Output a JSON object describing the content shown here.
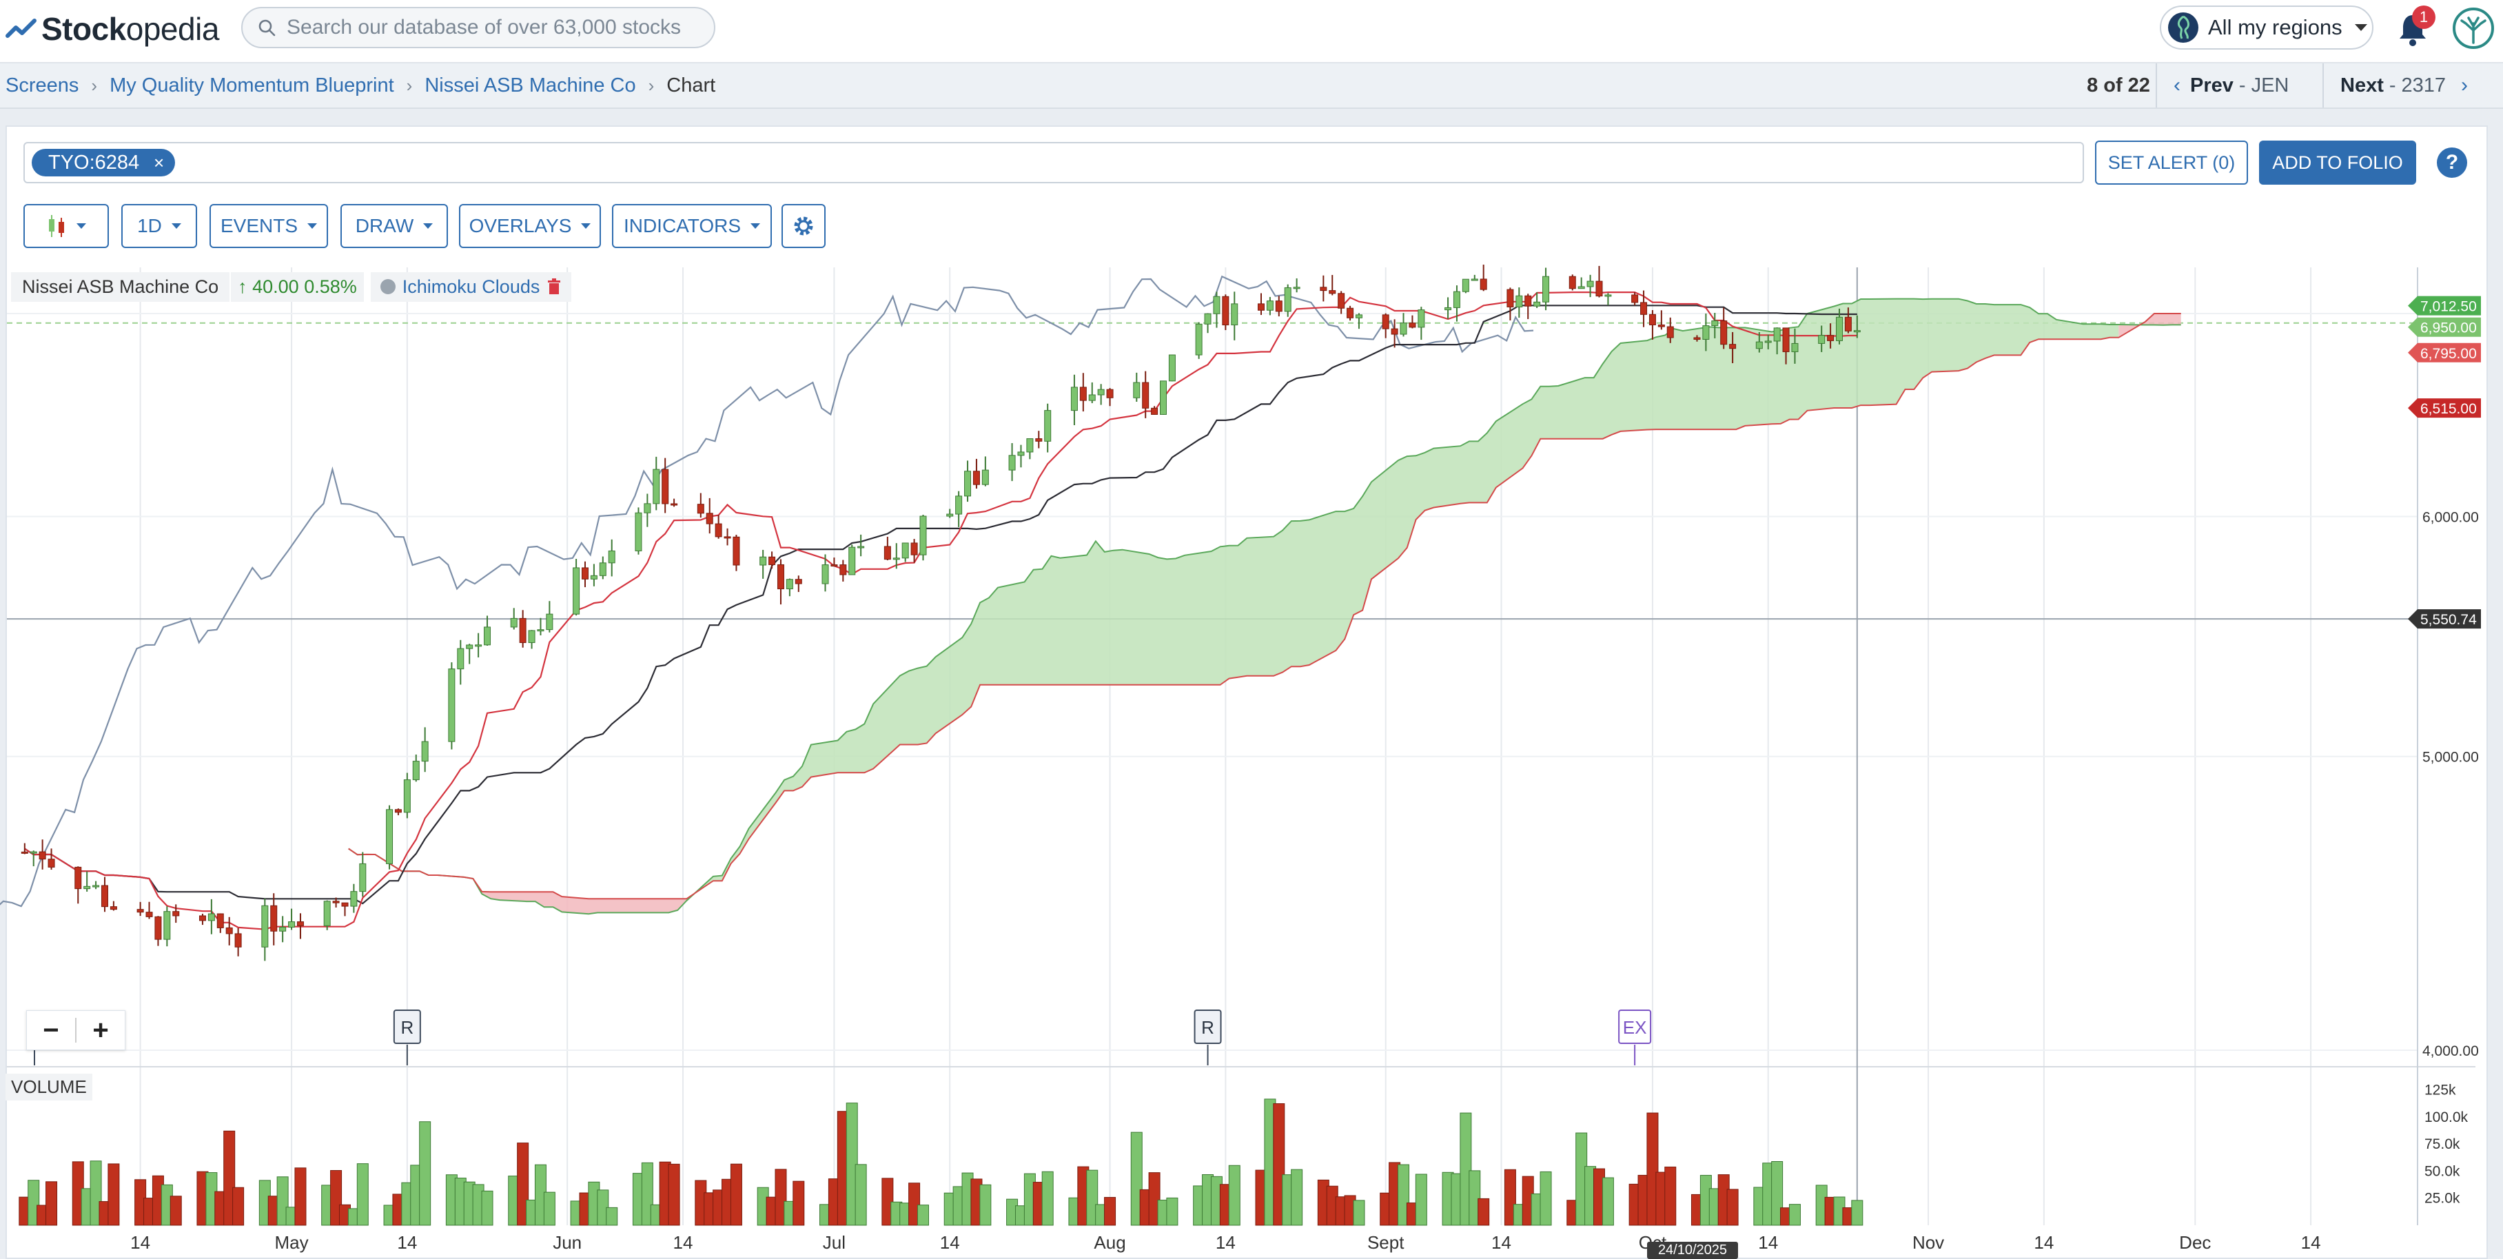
{
  "header": {
    "logo_text": "Stockopedia",
    "search_placeholder": "Search our database of over 63,000 stocks",
    "region_label": "All my regions",
    "notification_count": "1"
  },
  "breadcrumb": {
    "items": [
      "Screens",
      "My Quality Momentum Blueprint",
      "Nissei ASB Machine Co",
      "Chart"
    ]
  },
  "pager": {
    "position": "8 of 22",
    "prev_label": "Prev",
    "prev_ticker": "JEN",
    "next_label": "Next",
    "next_ticker": "2317"
  },
  "ticker": {
    "symbol": "TYO:6284",
    "remove_glyph": "×"
  },
  "actions": {
    "set_alert": "SET ALERT  (0)",
    "add_to_folio": "ADD TO FOLIO",
    "help": "?"
  },
  "toolbar": {
    "interval": "1D",
    "events": "EVENTS",
    "draw": "DRAW",
    "overlays": "OVERLAYS",
    "indicators": "INDICATORS"
  },
  "legend": {
    "company": "Nissei ASB Machine Co",
    "change": "↑ 40.00 0.58%",
    "indicator": "Ichimoku Clouds"
  },
  "zoom": {
    "minus": "−",
    "plus": "+"
  },
  "volume_label": "VOLUME",
  "crosshair_date": "24/10/2025",
  "colors": {
    "up": "#7cc36e",
    "down": "#c0311d",
    "accent": "#2f6db0",
    "cloud_bull": "#bfe3b8",
    "cloud_bear": "#f2b8bd"
  },
  "chart_data": {
    "type": "candlestick",
    "title": "",
    "price_scale": "log",
    "ylim": [
      3950,
      7250
    ],
    "y_ticks": [
      "4,000.00",
      "5,000.00",
      "6,000.00"
    ],
    "price_labels": [
      {
        "label": "7,012.50",
        "color": "#4caf50"
      },
      {
        "label": "6,950.00",
        "color": "#7cc36e"
      },
      {
        "label": "6,795.00",
        "color": "#e05555"
      },
      {
        "label": "6,515.00",
        "color": "#c62828"
      },
      {
        "label": "5,550.74",
        "color": "#333333"
      }
    ],
    "x_ticks": [
      "14",
      "May",
      "14",
      "Jun",
      "14",
      "Jul",
      "14",
      "Aug",
      "14",
      "Sept",
      "14",
      "Oct",
      "14",
      "Nov",
      "14",
      "Dec",
      "14"
    ],
    "x_ticks_iso": [
      "2025-04-14",
      "2025-05-01",
      "2025-05-14",
      "2025-06-01",
      "2025-06-14",
      "2025-07-01",
      "2025-07-14",
      "2025-08-01",
      "2025-08-14",
      "2025-09-01",
      "2025-09-14",
      "2025-10-01",
      "2025-10-14",
      "2025-11-01",
      "2025-11-14",
      "2025-12-01",
      "2025-12-14"
    ],
    "volume_ticks": [
      "125k",
      "100.0k",
      "75.0k",
      "50.0k",
      "25.0k"
    ],
    "volume_max": 140000,
    "events": [
      {
        "date": "2025-05-14",
        "label": "R"
      },
      {
        "date": "2025-08-12",
        "label": "R"
      },
      {
        "date": "2025-09-29",
        "label": "EX"
      }
    ],
    "series": [
      {
        "name": "Nissei ASB Machine Co",
        "type": "candlestick",
        "x": [
          "2025-04-03",
          "2025-04-14",
          "2025-04-25",
          "2025-05-07",
          "2025-05-14",
          "2025-05-21",
          "2025-05-28",
          "2025-06-04",
          "2025-06-11",
          "2025-06-18",
          "2025-06-25",
          "2025-07-02",
          "2025-07-09",
          "2025-07-16",
          "2025-07-23",
          "2025-07-30",
          "2025-08-06",
          "2025-08-12",
          "2025-08-20",
          "2025-08-27",
          "2025-09-03",
          "2025-09-10",
          "2025-09-17",
          "2025-09-24",
          "2025-10-01",
          "2025-10-08",
          "2025-10-15",
          "2025-10-22"
        ],
        "values": [
          4650,
          4400,
          4380,
          4500,
          4900,
          5450,
          5500,
          5800,
          6150,
          5900,
          5700,
          5800,
          5850,
          6150,
          6400,
          6600,
          6550,
          7000,
          7100,
          7050,
          6950,
          7100,
          7100,
          7200,
          6900,
          6900,
          6850,
          6950
        ]
      },
      {
        "name": "Tenkan-sen",
        "values_note": ""
      },
      {
        "name": "Kijun-sen",
        "values_note": ""
      },
      {
        "name": "Chikou Span",
        "values_note": ""
      }
    ]
  }
}
